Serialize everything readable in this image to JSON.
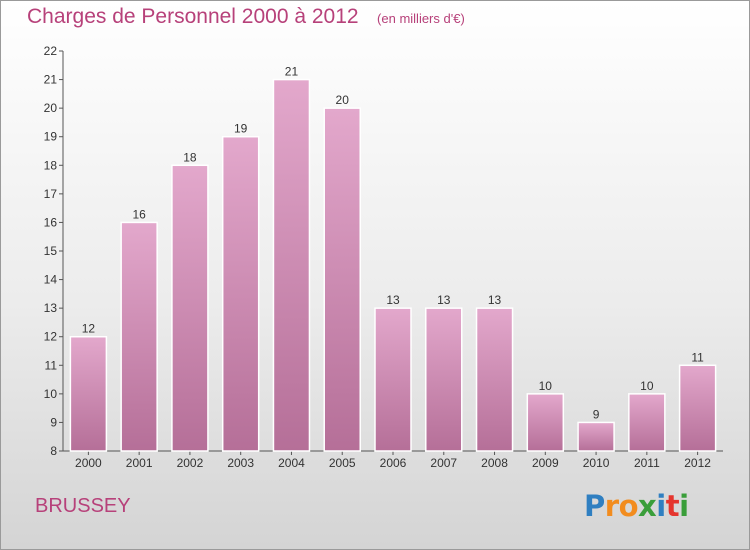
{
  "chart_data": {
    "type": "bar",
    "title": "Charges de Personnel 2000 à 2012",
    "subtitle": "(en milliers d'€)",
    "categories": [
      "2000",
      "2001",
      "2002",
      "2003",
      "2004",
      "2005",
      "2006",
      "2007",
      "2008",
      "2009",
      "2010",
      "2011",
      "2012"
    ],
    "values": [
      12,
      16,
      18,
      19,
      21,
      20,
      13,
      13,
      13,
      10,
      9,
      10,
      11
    ],
    "ylim": [
      8,
      22
    ],
    "yticks": [
      8,
      9,
      10,
      11,
      12,
      13,
      14,
      15,
      16,
      17,
      18,
      19,
      20,
      21,
      22
    ],
    "grid": false,
    "legend": "none",
    "bar_color_top": "#e3a8cc",
    "bar_color_bottom": "#b56f98"
  },
  "commune": "BRUSSEY",
  "logo": {
    "letters": [
      "P",
      "r",
      "o",
      "x",
      "i",
      "t",
      "i"
    ],
    "colors": [
      "#2f7fc1",
      "#f28c1e",
      "#f28c1e",
      "#3a9e3a",
      "#2f7fc1",
      "#e5352e",
      "#3a9e3a"
    ]
  },
  "colors": {
    "title": "#b7417a",
    "accent": "#b7417a"
  }
}
